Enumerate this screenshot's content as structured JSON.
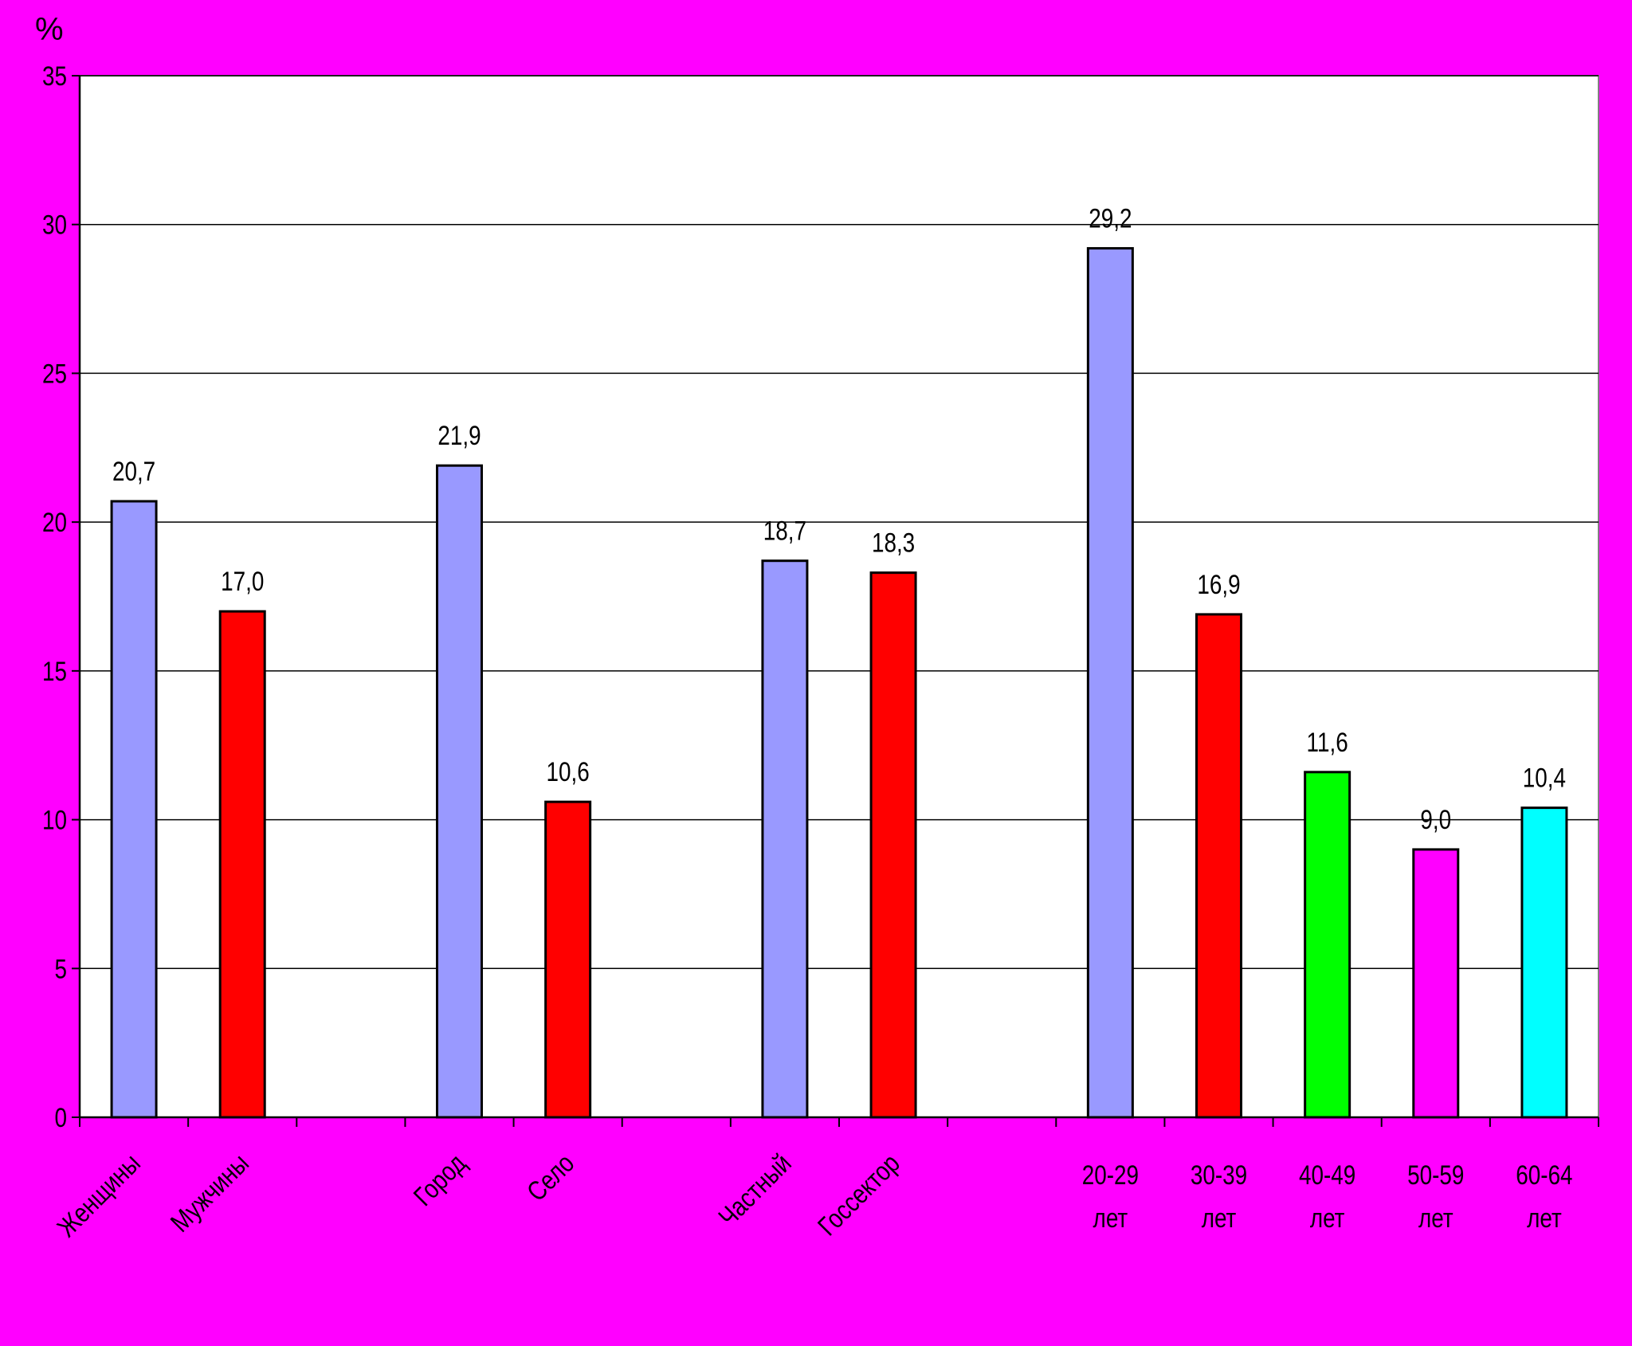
{
  "chart_data": {
    "type": "bar",
    "ylabel": "%",
    "ylim": [
      0,
      35
    ],
    "yticks": [
      0,
      5,
      10,
      15,
      20,
      25,
      30,
      35
    ],
    "grid": true,
    "legend": "none",
    "slots": 14,
    "bars": [
      {
        "slot": 0,
        "label": "Женщины",
        "value": 20.7,
        "value_label": "20,7",
        "color": "#9999FF",
        "rotated": true
      },
      {
        "slot": 1,
        "label": "Мужчины",
        "value": 17.0,
        "value_label": "17,0",
        "color": "#FF0000",
        "rotated": true
      },
      {
        "slot": 3,
        "label": "Город",
        "value": 21.9,
        "value_label": "21,9",
        "color": "#9999FF",
        "rotated": true
      },
      {
        "slot": 4,
        "label": "Село",
        "value": 10.6,
        "value_label": "10,6",
        "color": "#FF0000",
        "rotated": true
      },
      {
        "slot": 6,
        "label": "Частный",
        "value": 18.7,
        "value_label": "18,7",
        "color": "#9999FF",
        "rotated": true
      },
      {
        "slot": 7,
        "label": "Госсектор",
        "value": 18.3,
        "value_label": "18,3",
        "color": "#FF0000",
        "rotated": true
      },
      {
        "slot": 9,
        "label": "20-29 лет",
        "value": 29.2,
        "value_label": "29,2",
        "color": "#9999FF",
        "rotated": false
      },
      {
        "slot": 10,
        "label": "30-39 лет",
        "value": 16.9,
        "value_label": "16,9",
        "color": "#FF0000",
        "rotated": false
      },
      {
        "slot": 11,
        "label": "40-49 лет",
        "value": 11.6,
        "value_label": "11,6",
        "color": "#00FF00",
        "rotated": false
      },
      {
        "slot": 12,
        "label": "50-59 лет",
        "value": 9.0,
        "value_label": "9,0",
        "color": "#FF00FF",
        "rotated": false
      },
      {
        "slot": 13,
        "label": "60-64 лет",
        "value": 10.4,
        "value_label": "10,4",
        "color": "#00FFFF",
        "rotated": false
      }
    ],
    "background_color": "#FF00FF",
    "plot_background_color": "#FFFFFF"
  }
}
